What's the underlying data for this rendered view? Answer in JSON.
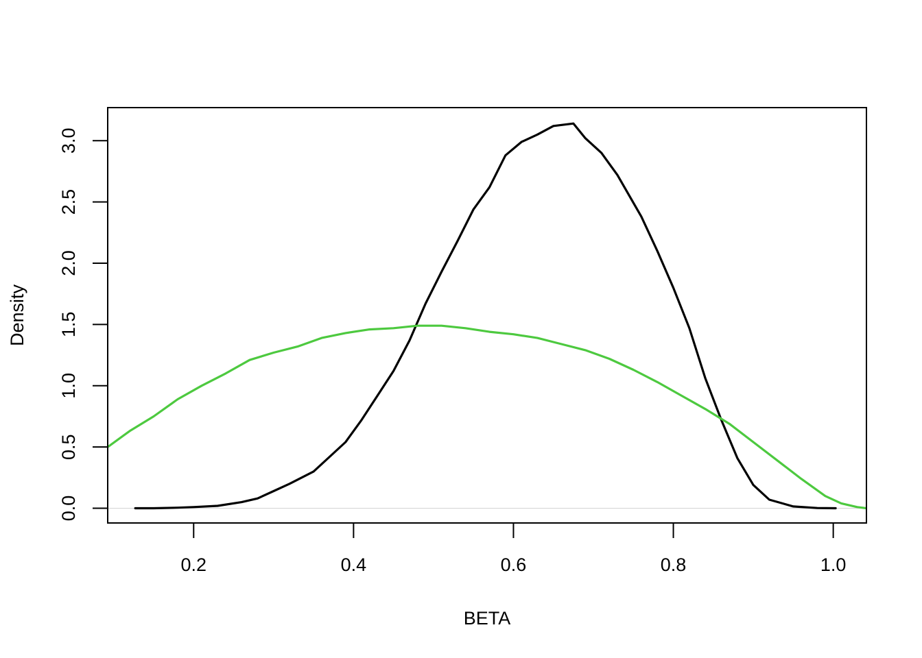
{
  "chart_data": {
    "type": "line",
    "title": "",
    "xlabel": "BETA",
    "ylabel": "Density",
    "xlim": [
      0.0925,
      1.0415
    ],
    "ylim": [
      -0.12,
      3.27
    ],
    "x_ticks": [
      0.2,
      0.4,
      0.6,
      0.8,
      1.0
    ],
    "x_tick_labels": [
      "0.2",
      "0.4",
      "0.6",
      "0.8",
      "1.0"
    ],
    "y_ticks": [
      0.0,
      0.5,
      1.0,
      1.5,
      2.0,
      2.5,
      3.0
    ],
    "y_tick_labels": [
      "0.0",
      "0.5",
      "1.0",
      "1.5",
      "2.0",
      "2.5",
      "3.0"
    ],
    "zero_line": true,
    "grid": false,
    "legend": "none",
    "colors": {
      "axis": "#000000",
      "zero_line": "#d3d3d3"
    },
    "series": [
      {
        "color": "#000000",
        "x": [
          0.127,
          0.15,
          0.18,
          0.2,
          0.23,
          0.26,
          0.28,
          0.3,
          0.32,
          0.35,
          0.37,
          0.39,
          0.41,
          0.43,
          0.45,
          0.47,
          0.49,
          0.51,
          0.53,
          0.55,
          0.57,
          0.59,
          0.61,
          0.63,
          0.65,
          0.675,
          0.69,
          0.71,
          0.73,
          0.76,
          0.78,
          0.8,
          0.82,
          0.84,
          0.86,
          0.88,
          0.9,
          0.92,
          0.95,
          0.98,
          1.003
        ],
        "y": [
          0.0,
          0.0,
          0.005,
          0.01,
          0.02,
          0.05,
          0.08,
          0.14,
          0.2,
          0.3,
          0.42,
          0.54,
          0.72,
          0.92,
          1.12,
          1.37,
          1.67,
          1.93,
          2.18,
          2.44,
          2.62,
          2.88,
          2.99,
          3.05,
          3.12,
          3.14,
          3.02,
          2.9,
          2.72,
          2.38,
          2.1,
          1.8,
          1.47,
          1.06,
          0.72,
          0.41,
          0.19,
          0.07,
          0.015,
          0.002,
          0.0
        ]
      },
      {
        "color": "#4dc93f",
        "x": [
          0.0925,
          0.12,
          0.15,
          0.18,
          0.21,
          0.24,
          0.27,
          0.3,
          0.33,
          0.36,
          0.39,
          0.42,
          0.45,
          0.48,
          0.51,
          0.54,
          0.57,
          0.6,
          0.63,
          0.66,
          0.69,
          0.72,
          0.75,
          0.78,
          0.81,
          0.84,
          0.87,
          0.9,
          0.93,
          0.96,
          0.99,
          1.01,
          1.03,
          1.0415
        ],
        "y": [
          0.5,
          0.63,
          0.75,
          0.89,
          1.0,
          1.1,
          1.21,
          1.27,
          1.32,
          1.39,
          1.43,
          1.46,
          1.47,
          1.49,
          1.49,
          1.47,
          1.44,
          1.42,
          1.39,
          1.34,
          1.29,
          1.22,
          1.13,
          1.03,
          0.92,
          0.81,
          0.69,
          0.54,
          0.39,
          0.24,
          0.1,
          0.04,
          0.01,
          0.0
        ]
      }
    ]
  }
}
